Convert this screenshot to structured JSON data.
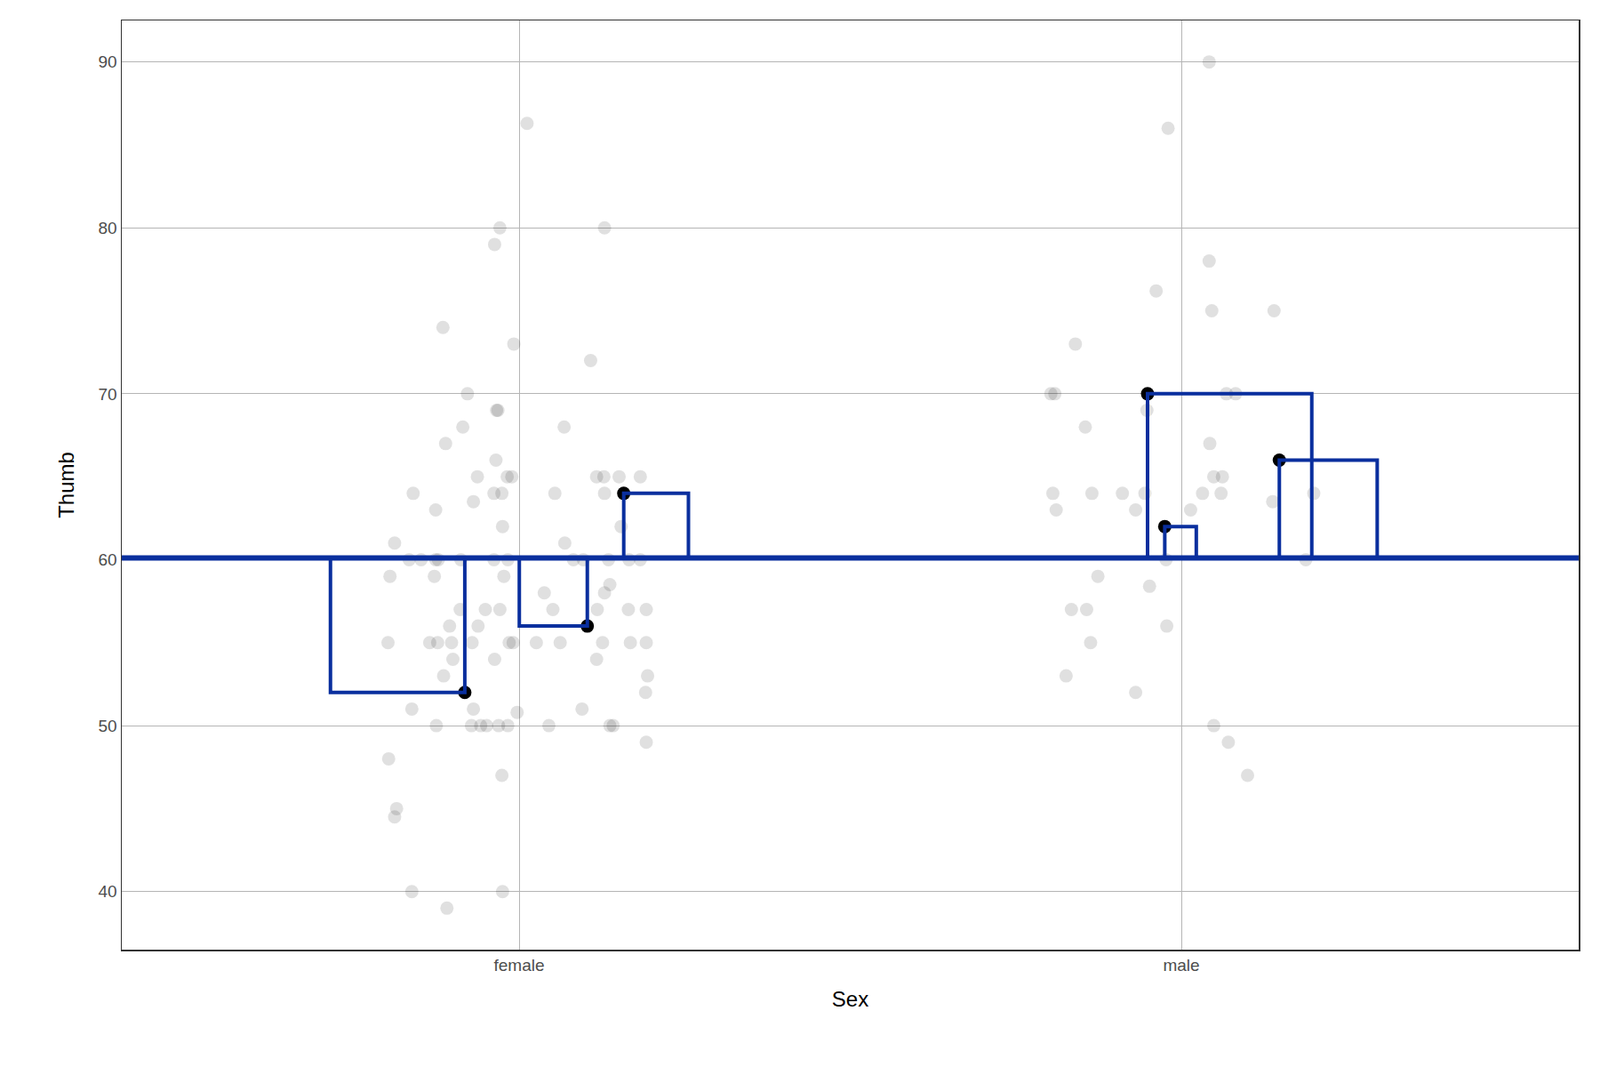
{
  "chart_data": {
    "type": "scatter",
    "x_label": "Sex",
    "y_label": "Thumb",
    "xlim": [
      -0.6,
      1.6
    ],
    "xticks": [
      {
        "value": 0,
        "label": "female"
      },
      {
        "value": 1,
        "label": "male"
      }
    ],
    "ylim": [
      36.5,
      92.5
    ],
    "yticks": [
      40,
      50,
      60,
      70,
      80,
      90
    ],
    "grid": true,
    "mean": 60.1,
    "mean_color": "#0A2F9E",
    "series": [
      {
        "color": "#000000",
        "marker": "faded",
        "x": [
          0.012,
          -0.029,
          0.129,
          -0.037,
          -0.115,
          -0.008,
          0.108,
          -0.078,
          -0.034,
          -0.032,
          -0.085,
          0.068,
          -0.111,
          -0.035,
          -0.063,
          -0.018,
          -0.011,
          0.117,
          0.128,
          0.151,
          0.183,
          -0.16,
          -0.038,
          -0.026,
          0.054,
          0.129,
          -0.069,
          -0.126,
          -0.025,
          0.154,
          -0.188,
          0.069,
          -0.166,
          -0.148,
          -0.126,
          -0.122,
          -0.088,
          -0.038,
          -0.017,
          0.082,
          0.097,
          0.135,
          0.166,
          0.183,
          -0.195,
          -0.128,
          -0.023,
          0.137,
          0.129,
          0.038,
          -0.089,
          -0.051,
          -0.029,
          0.051,
          0.118,
          0.165,
          0.192,
          -0.105,
          -0.062,
          -0.198,
          -0.135,
          -0.123,
          -0.102,
          -0.071,
          -0.015,
          -0.009,
          0.026,
          0.062,
          0.126,
          0.168,
          0.192,
          -0.1,
          -0.037,
          0.117,
          -0.114,
          0.194,
          0.191,
          -0.162,
          -0.069,
          0.095,
          -0.003,
          -0.125,
          -0.072,
          -0.058,
          -0.049,
          -0.031,
          -0.017,
          0.045,
          0.137,
          0.142,
          0.192,
          -0.197,
          -0.026,
          -0.185,
          -0.188,
          -0.162,
          -0.025,
          -0.109,
          1.042,
          0.98,
          1.042,
          0.962,
          1.046,
          1.14,
          0.84,
          0.803,
          0.809,
          1.068,
          1.082,
          0.855,
          0.948,
          1.043,
          1.049,
          1.062,
          0.806,
          0.865,
          0.911,
          0.945,
          1.032,
          1.06,
          1.2,
          1.138,
          0.811,
          0.931,
          1.014,
          0.977,
          1.188,
          0.874,
          0.952,
          0.834,
          0.857,
          0.978,
          0.863,
          0.826,
          0.931,
          1.049,
          1.071,
          1.1
        ],
        "values": [
          86.3,
          80,
          80,
          79,
          74,
          73,
          72,
          70,
          69,
          69,
          68,
          68,
          67,
          66,
          65,
          65,
          65,
          65,
          65,
          65,
          65,
          64,
          64,
          64,
          64,
          64,
          63.5,
          63,
          62,
          62,
          61,
          61,
          60,
          60,
          60,
          60,
          60,
          60,
          60,
          60,
          60,
          60,
          60,
          60,
          59,
          59,
          59,
          58.5,
          58,
          58,
          57,
          57,
          57,
          57,
          57,
          57,
          57,
          56,
          56,
          55,
          55,
          55,
          55,
          55,
          55,
          55,
          55,
          55,
          55,
          55,
          55,
          54,
          54,
          54,
          53,
          53,
          52,
          51,
          51,
          51,
          50.8,
          50,
          50,
          50,
          50,
          50,
          50,
          50,
          50,
          50,
          49,
          48,
          47,
          45,
          44.5,
          40,
          40,
          39,
          90,
          86,
          78,
          76.2,
          75,
          75,
          73,
          70,
          70,
          70,
          70,
          68,
          69,
          67,
          65,
          65,
          64,
          64,
          64,
          64,
          64,
          64,
          64,
          63.5,
          63,
          63,
          63,
          60,
          60,
          59,
          58.4,
          57,
          57,
          56,
          55,
          53,
          52,
          50,
          49,
          47
        ]
      },
      {
        "color": "#000000",
        "marker": "solid",
        "x": [
          -0.082,
          0.103,
          0.158,
          0.949,
          0.975,
          1.148
        ],
        "values": [
          52,
          56,
          64,
          70,
          62,
          66
        ]
      }
    ]
  }
}
